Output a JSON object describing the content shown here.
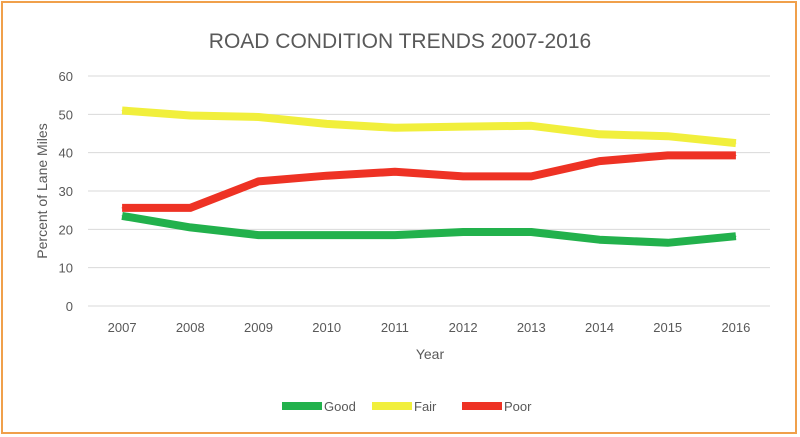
{
  "chart_data": {
    "type": "line",
    "title": "ROAD CONDITION TRENDS 2007-2016",
    "xlabel": "Year",
    "ylabel": "Percent of Lane Miles",
    "categories": [
      "2007",
      "2008",
      "2009",
      "2010",
      "2011",
      "2012",
      "2013",
      "2014",
      "2015",
      "2016"
    ],
    "y_ticks": [
      "0",
      "10",
      "20",
      "30",
      "40",
      "50",
      "60"
    ],
    "ylim": [
      0,
      60
    ],
    "grid": true,
    "legend_position": "bottom",
    "series": [
      {
        "name": "Good",
        "color": "#22b14c",
        "values": [
          23.5,
          20.5,
          18.5,
          18.5,
          18.5,
          19.3,
          19.3,
          17.3,
          16.5,
          18.2
        ]
      },
      {
        "name": "Fair",
        "color": "#f1ef3c",
        "values": [
          51.0,
          49.7,
          49.3,
          47.5,
          46.5,
          46.8,
          47.0,
          44.8,
          44.3,
          42.5
        ]
      },
      {
        "name": "Poor",
        "color": "#ee3224",
        "values": [
          25.6,
          25.6,
          32.5,
          34.0,
          35.0,
          33.8,
          33.8,
          37.8,
          39.3,
          39.3
        ]
      }
    ]
  }
}
